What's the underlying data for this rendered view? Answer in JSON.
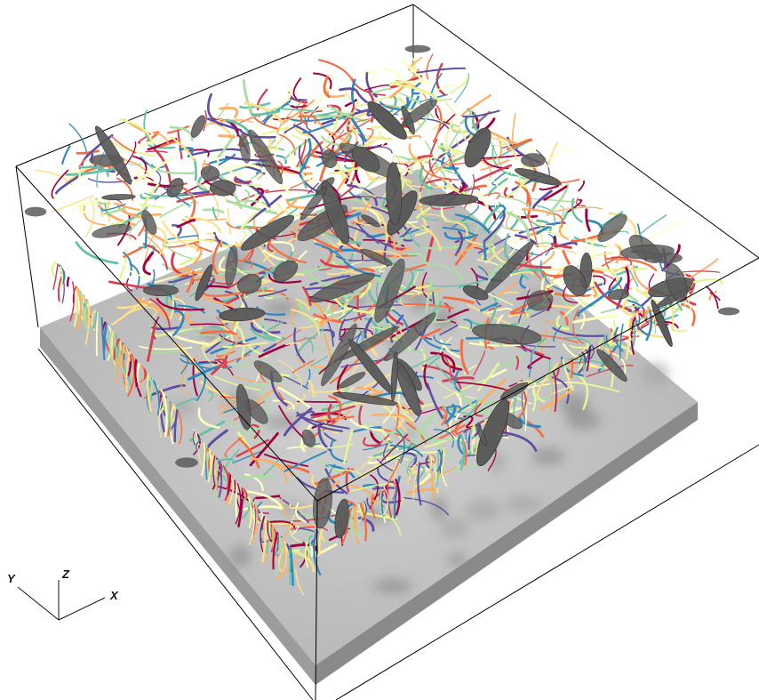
{
  "scene": {
    "kind": "3D turbulent flow visualization",
    "colors": {
      "background": "#ffffff",
      "box_edges": "#000000",
      "floor_plane": "#c6c6c6",
      "vortex_surfaces": "#5a5a5a",
      "streamline_palette": [
        "#9e0142",
        "#d53e4f",
        "#f46d43",
        "#fdae61",
        "#fee08b",
        "#ffffbf",
        "#e6f598",
        "#abdda4",
        "#66c2a5",
        "#3288bd",
        "#5e4fa2"
      ]
    }
  },
  "axis_triad": {
    "x_label": "X",
    "y_label": "Y",
    "z_label": "Z"
  }
}
